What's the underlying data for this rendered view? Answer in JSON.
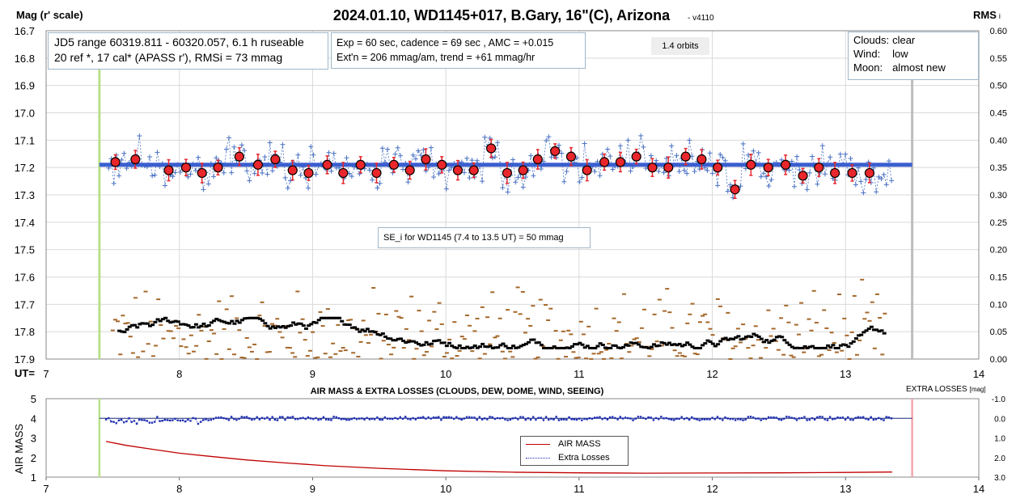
{
  "title": "2024.01.10, WD1145+017, B.Gary, 16\"(C), Arizona",
  "version": "- v4110",
  "top_panel": {
    "ylabel_left": "Mag (r' scale)",
    "ylabel_right": "RMS",
    "ylabel_right_sub": "i",
    "xlabel": "UT=",
    "info_box_1": {
      "line1": "JD5 range 60319.811 - 60320.057, 6.1 h ruseable",
      "line2": "20 ref *, 17 cal*  (APASS r'), RMSi = 73 mmag"
    },
    "info_box_2": {
      "line1": "Exp = 60 sec, cadence = 69 sec , AMC = +0.015",
      "line2": "Ext'n = 206 mmag/am, trend = +61 mmag/hr"
    },
    "orbits_label": "1.4 orbits",
    "conditions": [
      {
        "label": "Clouds:",
        "value": "clear"
      },
      {
        "label": "Wind:",
        "value": "low"
      },
      {
        "label": "Moon:",
        "value": "almost new"
      }
    ],
    "se_label": "SE_i for WD1145 (7.4 to 13.5 UT) = 50 mmag"
  },
  "bottom_panel": {
    "title": "AIR MASS & EXTRA LOSSES (CLOUDS, DEW, DOME, WIND, SEEING)",
    "ylabel_left": "AIR MASS",
    "ylabel_right": "EXTRA LOSSES",
    "ylabel_right_unit": "[mag]",
    "legend": [
      {
        "name": "AIR MASS",
        "color": "#c00000"
      },
      {
        "name": "Extra Losses",
        "color": "#1f2fb0"
      }
    ]
  },
  "colors": {
    "individual": "#4a72c4",
    "binned_fill": "#e8262b",
    "model_line": "#3a5fd0",
    "rms_brown": "#a5672a",
    "rms_black": "#000000",
    "start_marker": "#b8e08a",
    "end_marker": "#bdbdbd",
    "end_marker_bottom": "#f4a6ae",
    "airmass": "#c00000",
    "losses": "#1f2fb0"
  },
  "chart_data": [
    {
      "type": "scatter",
      "name": "light curve",
      "x_axis": {
        "range": [
          7,
          14
        ],
        "ticks": [
          7,
          8,
          9,
          10,
          11,
          12,
          13,
          14
        ]
      },
      "y_axis_left": {
        "range": [
          17.9,
          16.7
        ],
        "inverted": true,
        "ticks": [
          "16.7",
          "16.8",
          "16.9",
          "17.0",
          "17.1",
          "17.2",
          "17.3",
          "17.4",
          "17.5",
          "17.6",
          "17.7",
          "17.8",
          "17.9"
        ]
      },
      "y_axis_right": {
        "range": [
          0,
          0.6
        ],
        "ticks": [
          "0.60",
          "0.55",
          "0.50",
          "0.45",
          "0.40",
          "0.35",
          "0.30",
          "0.25",
          "0.20",
          "0.15",
          "0.10",
          "0.05",
          "0.00"
        ]
      },
      "grid": true,
      "model_line": {
        "x": [
          7.4,
          13.5
        ],
        "y": [
          17.19,
          17.19
        ]
      },
      "start_ut": 7.4,
      "end_ut": 13.5,
      "binned": {
        "x": [
          7.52,
          7.67,
          7.92,
          8.05,
          8.17,
          8.29,
          8.45,
          8.59,
          8.72,
          8.85,
          8.97,
          9.11,
          9.23,
          9.36,
          9.48,
          9.61,
          9.73,
          9.85,
          9.97,
          10.09,
          10.21,
          10.34,
          10.46,
          10.58,
          10.69,
          10.82,
          10.94,
          11.06,
          11.19,
          11.31,
          11.43,
          11.55,
          11.67,
          11.8,
          11.92,
          12.04,
          12.17,
          12.29,
          12.42,
          12.55,
          12.68,
          12.8,
          12.92,
          13.05,
          13.18
        ],
        "y": [
          17.18,
          17.17,
          17.21,
          17.2,
          17.22,
          17.2,
          17.16,
          17.19,
          17.17,
          17.21,
          17.22,
          17.19,
          17.22,
          17.19,
          17.22,
          17.19,
          17.21,
          17.17,
          17.19,
          17.21,
          17.21,
          17.13,
          17.22,
          17.21,
          17.17,
          17.14,
          17.16,
          17.21,
          17.18,
          17.18,
          17.16,
          17.2,
          17.2,
          17.16,
          17.17,
          17.2,
          17.28,
          17.19,
          17.2,
          17.19,
          17.23,
          17.2,
          17.22,
          17.22,
          17.22
        ]
      },
      "individual_scatter_y_range": [
        17.04,
        17.31
      ]
    },
    {
      "type": "scatter",
      "name": "RMS",
      "y_axis": "right",
      "brown_level_range": [
        0.0,
        0.15
      ],
      "black_level_range": [
        0.02,
        0.09
      ]
    },
    {
      "type": "line",
      "name": "air mass & extra losses",
      "x_axis": {
        "range": [
          7,
          14
        ],
        "ticks": [
          7,
          8,
          9,
          10,
          11,
          12,
          13,
          14
        ]
      },
      "y_axis_left": {
        "range": [
          1,
          5
        ],
        "ticks": [
          1,
          2,
          3,
          4,
          5
        ]
      },
      "y_axis_right": {
        "range": [
          3.0,
          -1.0
        ],
        "ticks": [
          "-1.0",
          "0.0",
          "1.0",
          "2.0",
          "3.0"
        ]
      },
      "series": [
        {
          "name": "AIR MASS",
          "x": [
            7.45,
            7.6,
            7.8,
            8.0,
            8.2,
            8.5,
            8.8,
            9.1,
            9.5,
            10.0,
            10.5,
            11.0,
            11.5,
            12.0,
            12.5,
            13.0,
            13.35
          ],
          "y": [
            2.82,
            2.62,
            2.42,
            2.22,
            2.08,
            1.88,
            1.72,
            1.58,
            1.45,
            1.32,
            1.25,
            1.22,
            1.2,
            1.21,
            1.22,
            1.24,
            1.26
          ]
        },
        {
          "name": "Extra Losses",
          "x_range": [
            7.45,
            13.35
          ],
          "y_range": [
            -0.1,
            0.35
          ]
        }
      ],
      "start_ut": 7.4,
      "end_ut": 13.5
    }
  ]
}
